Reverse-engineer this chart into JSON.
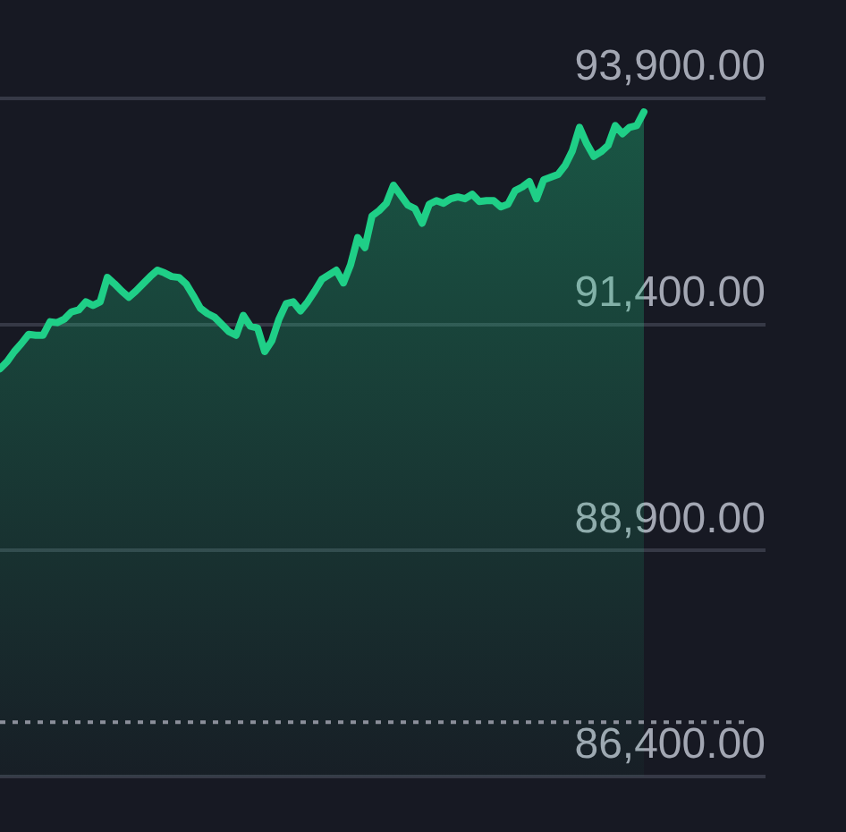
{
  "chart_data": {
    "type": "area",
    "categories": [
      null,
      null,
      null,
      null,
      null,
      null,
      null,
      null,
      null,
      null,
      null,
      null,
      null,
      null,
      null,
      null,
      null,
      null,
      null,
      null,
      null,
      null,
      null,
      null,
      null,
      null,
      null,
      null,
      null,
      null,
      null,
      null,
      null,
      null,
      null,
      null,
      null,
      null,
      null,
      null,
      null,
      null,
      null,
      null,
      null,
      null,
      null,
      null,
      null,
      null,
      null,
      null,
      null,
      null,
      null,
      null,
      null,
      null,
      null,
      null,
      null,
      null,
      null,
      null,
      null,
      null,
      null,
      null,
      null,
      null,
      null,
      null,
      null,
      null,
      null,
      null,
      null,
      null,
      null,
      null,
      null,
      null,
      null,
      null,
      null,
      null,
      null,
      null,
      null,
      null,
      null,
      null,
      null,
      null,
      null,
      null,
      null,
      null,
      null,
      null,
      null,
      null,
      null,
      null,
      null,
      null,
      null,
      null
    ],
    "series": [
      {
        "color": "#1fcf87",
        "values": [
          90910,
          90990,
          91100,
          91190,
          91290,
          91280,
          91280,
          91430,
          91420,
          91460,
          91540,
          91560,
          91650,
          91610,
          91650,
          91920,
          91850,
          91770,
          91700,
          91770,
          91850,
          91930,
          92000,
          91970,
          91930,
          91920,
          91850,
          91720,
          91580,
          91520,
          91480,
          91400,
          91320,
          91280,
          91500,
          91380,
          91360,
          91100,
          91220,
          91460,
          91630,
          91650,
          91550,
          91650,
          91770,
          91900,
          91950,
          92000,
          91860,
          92060,
          92360,
          92250,
          92600,
          92660,
          92740,
          92940,
          92830,
          92720,
          92680,
          92520,
          92730,
          92770,
          92740,
          92790,
          92810,
          92790,
          92840,
          92760,
          92770,
          92770,
          92700,
          92730,
          92880,
          92920,
          92980,
          92790,
          93000,
          93030,
          93060,
          93160,
          93320,
          93580,
          93400,
          93260,
          93310,
          93380,
          93600,
          93510,
          93580,
          93600,
          93750,
          null,
          null,
          null,
          null,
          null,
          null,
          null,
          null,
          null,
          null,
          null,
          null,
          null,
          null,
          null,
          null,
          null
        ]
      }
    ],
    "ylim": [
      86400,
      93900
    ],
    "yticks": [
      {
        "value": 86400,
        "label": "86,400.00"
      },
      {
        "value": 88900,
        "label": "88,900.00"
      },
      {
        "value": 91400,
        "label": "91,400.00"
      },
      {
        "value": 93900,
        "label": "93,900.00"
      }
    ],
    "ref_lines": [
      {
        "axis": "y",
        "value": 87000,
        "color": "#8b8f9a",
        "line_style": "dotted"
      }
    ],
    "grid": "y",
    "tick_labels": "y",
    "marker": "none",
    "line_style": "solid"
  }
}
